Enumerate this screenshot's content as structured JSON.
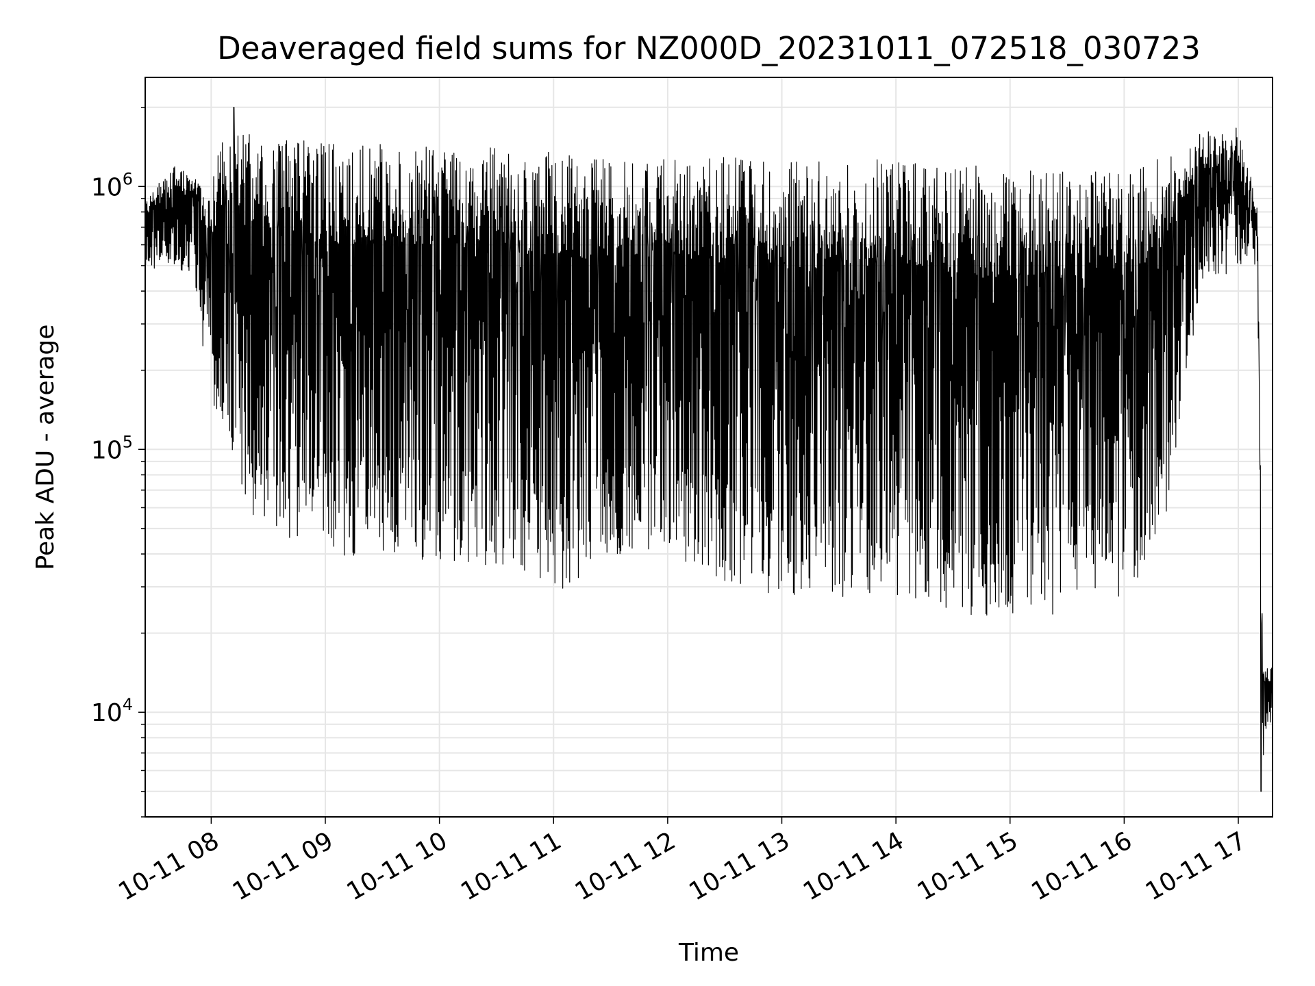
{
  "chart_data": {
    "type": "line",
    "title": "Deaveraged field sums for NZ000D_20231011_072518_030723",
    "xlabel": "Time",
    "ylabel": "Peak ADU - average",
    "yscale": "log",
    "ylim": [
      4000,
      2600000
    ],
    "xlim": [
      "2023-10-11 07:25:18",
      "2023-10-11 17:18:00"
    ],
    "grid": true,
    "line_color": "#000000",
    "grid_color": "#e6e6e6",
    "x_ticks": [
      {
        "value": "2023-10-11 08:00",
        "label": "10-11 08"
      },
      {
        "value": "2023-10-11 09:00",
        "label": "10-11 09"
      },
      {
        "value": "2023-10-11 10:00",
        "label": "10-11 10"
      },
      {
        "value": "2023-10-11 11:00",
        "label": "10-11 11"
      },
      {
        "value": "2023-10-11 12:00",
        "label": "10-11 12"
      },
      {
        "value": "2023-10-11 13:00",
        "label": "10-11 13"
      },
      {
        "value": "2023-10-11 14:00",
        "label": "10-11 14"
      },
      {
        "value": "2023-10-11 15:00",
        "label": "10-11 15"
      },
      {
        "value": "2023-10-11 16:00",
        "label": "10-11 16"
      },
      {
        "value": "2023-10-11 17:00",
        "label": "10-11 17"
      }
    ],
    "y_ticks": [
      {
        "value": 10000,
        "base": "10",
        "exp": "4"
      },
      {
        "value": 100000,
        "base": "10",
        "exp": "5"
      },
      {
        "value": 1000000,
        "base": "10",
        "exp": "6"
      }
    ],
    "series": [
      {
        "envelope_high": {
          "x": [
            "2023-10-11 07:25:18",
            "2023-10-11 07:40",
            "2023-10-11 07:50",
            "2023-10-11 08:00",
            "2023-10-11 08:05",
            "2023-10-11 08:20",
            "2023-10-11 08:40",
            "2023-10-11 09:00",
            "2023-10-11 09:30",
            "2023-10-11 10:00",
            "2023-10-11 10:30",
            "2023-10-11 11:00",
            "2023-10-11 11:30",
            "2023-10-11 12:00",
            "2023-10-11 12:30",
            "2023-10-11 13:00",
            "2023-10-11 13:30",
            "2023-10-11 14:00",
            "2023-10-11 14:30",
            "2023-10-11 15:00",
            "2023-10-11 15:30",
            "2023-10-11 16:00",
            "2023-10-11 16:20",
            "2023-10-11 16:40",
            "2023-10-11 17:00",
            "2023-10-11 17:05",
            "2023-10-11 17:10",
            "2023-10-11 17:13",
            "2023-10-11 17:18"
          ],
          "y": [
            900000,
            1200000,
            1100000,
            1000000,
            1500000,
            1600000,
            1550000,
            1500000,
            1450000,
            1450000,
            1400000,
            1350000,
            1300000,
            1300000,
            1300000,
            1250000,
            1250000,
            1300000,
            1200000,
            1200000,
            1150000,
            1150000,
            1300000,
            1600000,
            1700000,
            1200000,
            900000,
            16000,
            15000
          ]
        },
        "envelope_low": {
          "x": [
            "2023-10-11 07:25:18",
            "2023-10-11 07:40",
            "2023-10-11 07:50",
            "2023-10-11 08:00",
            "2023-10-11 08:05",
            "2023-10-11 08:20",
            "2023-10-11 08:40",
            "2023-10-11 09:00",
            "2023-10-11 09:30",
            "2023-10-11 10:00",
            "2023-10-11 10:30",
            "2023-10-11 11:00",
            "2023-10-11 11:30",
            "2023-10-11 12:00",
            "2023-10-11 12:30",
            "2023-10-11 13:00",
            "2023-10-11 13:30",
            "2023-10-11 14:00",
            "2023-10-11 14:30",
            "2023-10-11 15:00",
            "2023-10-11 15:30",
            "2023-10-11 16:00",
            "2023-10-11 16:20",
            "2023-10-11 16:40",
            "2023-10-11 17:00",
            "2023-10-11 17:05",
            "2023-10-11 17:10",
            "2023-10-11 17:13",
            "2023-10-11 17:18"
          ],
          "y": [
            450000,
            500000,
            450000,
            150000,
            120000,
            55000,
            45000,
            40000,
            38000,
            38000,
            35000,
            27000,
            40000,
            40000,
            30000,
            28000,
            27000,
            28000,
            23000,
            22000,
            24000,
            27000,
            45000,
            400000,
            500000,
            500000,
            500000,
            5500,
            9000
          ]
        },
        "min_point": {
          "x": "2023-10-11 17:12",
          "y": 5000
        },
        "max_point": {
          "x": "2023-10-11 08:12",
          "y": 2000000
        }
      }
    ]
  }
}
